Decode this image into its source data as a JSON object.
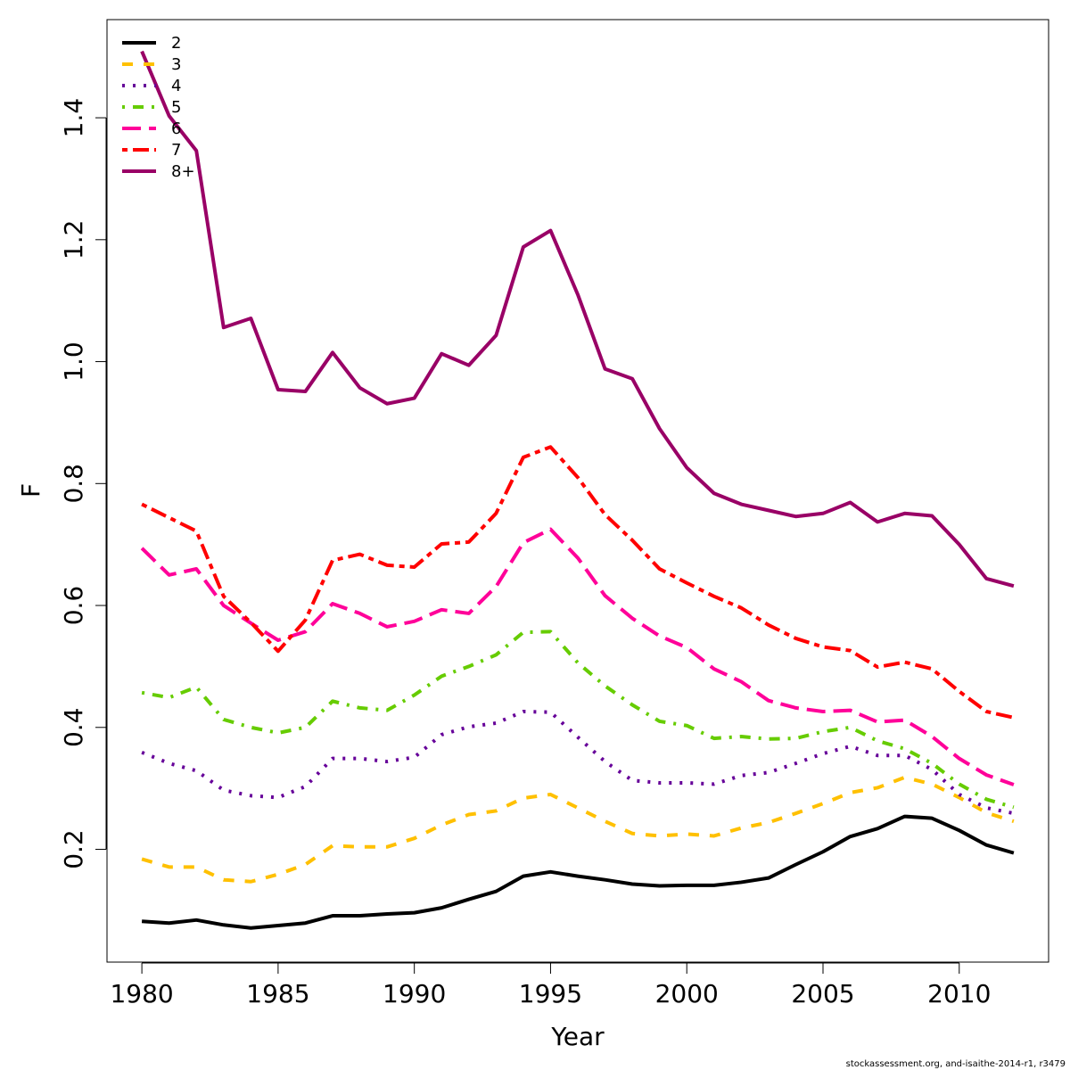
{
  "chart_data": {
    "type": "line",
    "x_label": "Year",
    "y_label": "F",
    "footer": "stockassessment.org, and-isaithe-2014-r1, r3479",
    "x": [
      1980,
      1981,
      1982,
      1983,
      1984,
      1985,
      1986,
      1987,
      1988,
      1989,
      1990,
      1991,
      1992,
      1993,
      1994,
      1995,
      1996,
      1997,
      1998,
      1999,
      2000,
      2001,
      2002,
      2003,
      2004,
      2005,
      2006,
      2007,
      2008,
      2009,
      2010,
      2011,
      2012
    ],
    "xlim": [
      1978.72,
      2013.28
    ],
    "xticks": [
      1980,
      1985,
      1990,
      1995,
      2000,
      2005,
      2010
    ],
    "ylim": [
      0.015,
      1.561
    ],
    "yticks": [
      0.2,
      0.4,
      0.6,
      0.8,
      {
        "value": 1.0,
        "label": "1.0"
      },
      1.2,
      1.4
    ],
    "legend": "top-left",
    "series": [
      {
        "name": "2",
        "color": "#000000",
        "dash": "solid",
        "values": [
          0.082,
          0.079,
          0.084,
          0.076,
          0.071,
          0.075,
          0.079,
          0.091,
          0.091,
          0.094,
          0.096,
          0.104,
          0.118,
          0.131,
          0.156,
          0.163,
          0.156,
          0.15,
          0.143,
          0.14,
          0.141,
          0.141,
          0.146,
          0.153,
          0.175,
          0.196,
          0.221,
          0.234,
          0.254,
          0.251,
          0.231,
          0.207,
          0.194
        ]
      },
      {
        "name": "3",
        "color": "#ffc000",
        "dash": "dashed",
        "values": [
          0.184,
          0.171,
          0.171,
          0.15,
          0.147,
          0.159,
          0.175,
          0.206,
          0.204,
          0.204,
          0.218,
          0.24,
          0.257,
          0.263,
          0.284,
          0.29,
          0.268,
          0.246,
          0.226,
          0.222,
          0.225,
          0.222,
          0.235,
          0.244,
          0.259,
          0.275,
          0.293,
          0.301,
          0.318,
          0.307,
          0.285,
          0.26,
          0.246
        ]
      },
      {
        "name": "4",
        "color": "#660099",
        "dash": "dotted",
        "values": [
          0.359,
          0.341,
          0.329,
          0.297,
          0.288,
          0.285,
          0.303,
          0.349,
          0.349,
          0.344,
          0.351,
          0.388,
          0.401,
          0.407,
          0.426,
          0.425,
          0.384,
          0.344,
          0.313,
          0.309,
          0.309,
          0.307,
          0.321,
          0.326,
          0.341,
          0.357,
          0.369,
          0.354,
          0.354,
          0.331,
          0.29,
          0.268,
          0.259
        ]
      },
      {
        "name": "5",
        "color": "#66cc00",
        "dash": "dotdash",
        "values": [
          0.457,
          0.449,
          0.466,
          0.413,
          0.4,
          0.391,
          0.4,
          0.443,
          0.432,
          0.428,
          0.453,
          0.484,
          0.5,
          0.519,
          0.556,
          0.557,
          0.506,
          0.468,
          0.437,
          0.41,
          0.403,
          0.382,
          0.385,
          0.381,
          0.382,
          0.393,
          0.4,
          0.378,
          0.365,
          0.341,
          0.307,
          0.282,
          0.269
        ]
      },
      {
        "name": "6",
        "color": "#ff0099",
        "dash": "longdash",
        "values": [
          0.694,
          0.65,
          0.66,
          0.6,
          0.571,
          0.543,
          0.557,
          0.603,
          0.587,
          0.565,
          0.574,
          0.593,
          0.587,
          0.631,
          0.703,
          0.725,
          0.678,
          0.616,
          0.579,
          0.55,
          0.531,
          0.496,
          0.475,
          0.444,
          0.432,
          0.426,
          0.428,
          0.409,
          0.412,
          0.385,
          0.349,
          0.322,
          0.306
        ]
      },
      {
        "name": "7",
        "color": "#ff0000",
        "dash": "twodash",
        "values": [
          0.766,
          0.744,
          0.722,
          0.615,
          0.572,
          0.525,
          0.576,
          0.674,
          0.684,
          0.666,
          0.663,
          0.701,
          0.704,
          0.751,
          0.843,
          0.86,
          0.81,
          0.749,
          0.707,
          0.66,
          0.637,
          0.615,
          0.596,
          0.568,
          0.546,
          0.532,
          0.526,
          0.499,
          0.507,
          0.496,
          0.459,
          0.426,
          0.416
        ]
      },
      {
        "name": "8+",
        "color": "#990066",
        "dash": "solid",
        "values": [
          1.509,
          1.403,
          1.346,
          1.056,
          1.071,
          0.954,
          0.951,
          1.015,
          0.957,
          0.931,
          0.94,
          1.013,
          0.994,
          1.043,
          1.188,
          1.215,
          1.11,
          0.988,
          0.972,
          0.89,
          0.826,
          0.784,
          0.766,
          0.756,
          0.746,
          0.751,
          0.769,
          0.737,
          0.751,
          0.747,
          0.7,
          0.644,
          0.632
        ]
      }
    ]
  }
}
